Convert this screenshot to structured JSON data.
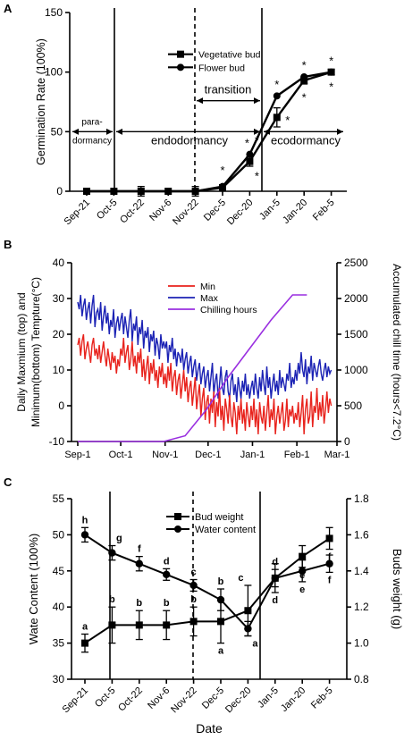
{
  "chart_data": [
    {
      "panel": "A",
      "type": "line",
      "ylabel": "Germination Rate (100%)",
      "ylim": [
        0,
        150
      ],
      "yticks": [
        0,
        50,
        100,
        150
      ],
      "categories": [
        "Sep-21",
        "Oct-5",
        "Oct-22",
        "Nov-6",
        "Nov-22",
        "Dec-5",
        "Dec-20",
        "Jan-5",
        "Jan-20",
        "Feb-5"
      ],
      "series": [
        {
          "name": "Vegetative bud",
          "marker": "square",
          "values": [
            0,
            0,
            0,
            0,
            0,
            3,
            25,
            62,
            93,
            100
          ],
          "errors": [
            0,
            0,
            4,
            0,
            4,
            2,
            4,
            8,
            3,
            2
          ]
        },
        {
          "name": "Flower bud",
          "marker": "circle",
          "values": [
            0,
            0,
            0,
            0,
            0,
            4,
            31,
            80,
            96,
            100
          ],
          "errors": [
            0,
            0,
            0,
            0,
            0,
            0,
            0,
            0,
            0,
            0
          ]
        }
      ],
      "stars_above": [
        "*",
        "*",
        "*",
        "*",
        "*",
        "*"
      ],
      "stars_below": [
        "*",
        "*",
        "*",
        "*"
      ],
      "phases": {
        "paradormancy_line1": "para-",
        "paradormancy_line2": "dormancy",
        "endodormancy": "endodormancy",
        "transition": "transition",
        "ecodormancy": "ecodormancy"
      }
    },
    {
      "panel": "B",
      "type": "line",
      "ylabel_left_line1": "Daliy Maxmium (top) and",
      "ylabel_left_line2": "Minimum(bottom) Tempture(°C)",
      "ylabel_right": "Accumulated chill time (hours<7.2°C)",
      "ylim_left": [
        -10,
        40
      ],
      "yticks_left": [
        -10,
        0,
        10,
        20,
        30,
        40
      ],
      "ylim_right": [
        0,
        2500
      ],
      "yticks_right": [
        0,
        500,
        1000,
        1500,
        2000,
        2500
      ],
      "xticks": [
        "Sep-1",
        "Oct-1",
        "Nov-1",
        "Dec-1",
        "Jan-1",
        "Feb-1",
        "Mar-1"
      ],
      "legend": [
        "Min",
        "Max",
        "Chilling hours"
      ],
      "colors": {
        "min": "#e8231d",
        "max": "#1b22b4",
        "chill": "#9a2fe0"
      },
      "min_temp_by_month": [
        {
          "month": "Sep",
          "values": [
            17,
            19,
            14,
            18,
            20,
            13,
            16,
            18,
            15,
            12,
            17,
            19,
            14,
            16,
            13,
            17,
            12,
            15,
            18,
            14,
            11,
            16,
            13,
            10,
            15,
            12,
            14,
            9,
            13,
            11
          ]
        },
        {
          "month": "Oct",
          "values": [
            16,
            14,
            19,
            12,
            15,
            17,
            10,
            13,
            18,
            11,
            14,
            9,
            15,
            12,
            16,
            8,
            13,
            7,
            11,
            14,
            6,
            12,
            9,
            13,
            7,
            10,
            5,
            11,
            8,
            12,
            6
          ]
        },
        {
          "month": "Nov",
          "values": [
            9,
            5,
            11,
            7,
            12,
            4,
            8,
            10,
            3,
            7,
            9,
            2,
            6,
            10,
            4,
            8,
            1,
            5,
            7,
            0,
            4,
            8,
            -1,
            3,
            6,
            -3,
            2,
            5,
            -4,
            1
          ]
        },
        {
          "month": "Dec",
          "values": [
            3,
            -5,
            2,
            -2,
            4,
            -6,
            1,
            -3,
            5,
            -4,
            0,
            -7,
            2,
            -1,
            -5,
            3,
            -3,
            -6,
            1,
            -2,
            -8,
            0,
            -4,
            2,
            -5,
            -1,
            -7,
            1,
            -3,
            -6,
            0
          ]
        },
        {
          "month": "Jan",
          "values": [
            -4,
            2,
            -6,
            -1,
            -8,
            1,
            -3,
            -5,
            0,
            -7,
            -2,
            3,
            -6,
            -1,
            -4,
            2,
            -8,
            -3,
            0,
            -5,
            -2,
            1,
            -7,
            -4,
            2,
            -6,
            -1,
            -3,
            0,
            -5,
            -2
          ]
        },
        {
          "month": "Feb",
          "values": [
            -4,
            1,
            -6,
            -2,
            3,
            -8,
            -1,
            2,
            -5,
            -3,
            4,
            -6,
            0,
            -2,
            5,
            -4,
            1,
            -3,
            3,
            -5,
            -1,
            4,
            -2,
            2,
            0
          ]
        }
      ],
      "max_temp_by_month": [
        {
          "month": "Sep",
          "values": [
            29,
            27,
            31,
            25,
            28,
            30,
            24,
            27,
            29,
            23,
            28,
            31,
            22,
            26,
            27,
            24,
            29,
            21,
            25,
            28,
            23,
            26,
            20,
            24,
            22,
            27,
            19,
            23,
            25,
            21
          ]
        },
        {
          "month": "Oct",
          "values": [
            24,
            26,
            20,
            25,
            22,
            19,
            24,
            27,
            18,
            23,
            21,
            25,
            17,
            22,
            20,
            24,
            16,
            21,
            19,
            22,
            15,
            20,
            18,
            21,
            14,
            19,
            17,
            13,
            20,
            16,
            18
          ]
        },
        {
          "month": "Nov",
          "values": [
            16,
            18,
            12,
            17,
            15,
            19,
            13,
            16,
            11,
            15,
            14,
            12,
            16,
            10,
            13,
            15,
            9,
            12,
            14,
            8,
            11,
            13,
            7,
            10,
            12,
            6,
            9,
            11,
            5,
            8
          ]
        },
        {
          "month": "Dec",
          "values": [
            10,
            4,
            8,
            12,
            3,
            7,
            9,
            2,
            6,
            11,
            5,
            3,
            8,
            10,
            4,
            2,
            7,
            9,
            3,
            6,
            1,
            8,
            5,
            2,
            7,
            4,
            9,
            3,
            6,
            2,
            5
          ]
        },
        {
          "month": "Jan",
          "values": [
            7,
            3,
            9,
            5,
            2,
            8,
            4,
            10,
            6,
            3,
            11,
            5,
            8,
            2,
            6,
            9,
            4,
            7,
            3,
            10,
            5,
            8,
            6,
            4,
            9,
            7,
            12,
            5,
            8,
            6,
            10
          ]
        },
        {
          "month": "Feb",
          "values": [
            7,
            12,
            9,
            15,
            10,
            8,
            13,
            6,
            11,
            9,
            14,
            7,
            12,
            10,
            8,
            11,
            13,
            9,
            7,
            10,
            12,
            8,
            11,
            9,
            10
          ]
        }
      ],
      "chilling_hours": {
        "x_days": [
          0,
          60,
          75,
          90,
          105,
          120,
          135,
          150,
          160
        ],
        "y": [
          0,
          0,
          80,
          450,
          900,
          1300,
          1700,
          2050,
          2050
        ]
      }
    },
    {
      "panel": "C",
      "type": "line",
      "xlabel": "Date",
      "ylabel_left": "Wate Content (100%)",
      "ylabel_right": "Buds  weight (g)",
      "ylim_left": [
        30,
        55
      ],
      "yticks_left": [
        30,
        35,
        40,
        45,
        50,
        55
      ],
      "ylim_right": [
        0.8,
        1.8
      ],
      "yticks_right": [
        "0.8",
        "1.0",
        "1.2",
        "1.4",
        "1.6",
        "1.8"
      ],
      "categories": [
        "Sep-21",
        "Oct-5",
        "Oct-22",
        "Nov-6",
        "Nov-22",
        "Dec-5",
        "Dec-20",
        "Jan-5",
        "Jan-20",
        "Feb-5"
      ],
      "series": [
        {
          "name": "Bud weight",
          "marker": "square",
          "axis": "right",
          "values": [
            1.0,
            1.1,
            1.1,
            1.1,
            1.12,
            1.12,
            1.18,
            1.36,
            1.48,
            1.58
          ],
          "errors": [
            0.05,
            0.1,
            0.08,
            0.08,
            0.08,
            0.12,
            0.14,
            0.08,
            0.06,
            0.06
          ],
          "letters": [
            "a",
            "b",
            "b",
            "b",
            "b",
            "a",
            "c",
            "d",
            "e",
            "f"
          ]
        },
        {
          "name": "Water content",
          "marker": "circle",
          "axis": "left",
          "values": [
            50,
            47.5,
            46,
            44.5,
            43,
            41,
            37,
            44,
            45,
            46
          ],
          "errors": [
            1,
            1,
            1,
            0.8,
            0.8,
            1.5,
            1,
            1.2,
            1.5,
            1.2
          ],
          "letters": [
            "h",
            "g",
            "f",
            "d",
            "c",
            "b",
            "a",
            "d",
            "e",
            "f"
          ]
        }
      ]
    }
  ],
  "panel_labels": [
    "A",
    "B",
    "C"
  ]
}
